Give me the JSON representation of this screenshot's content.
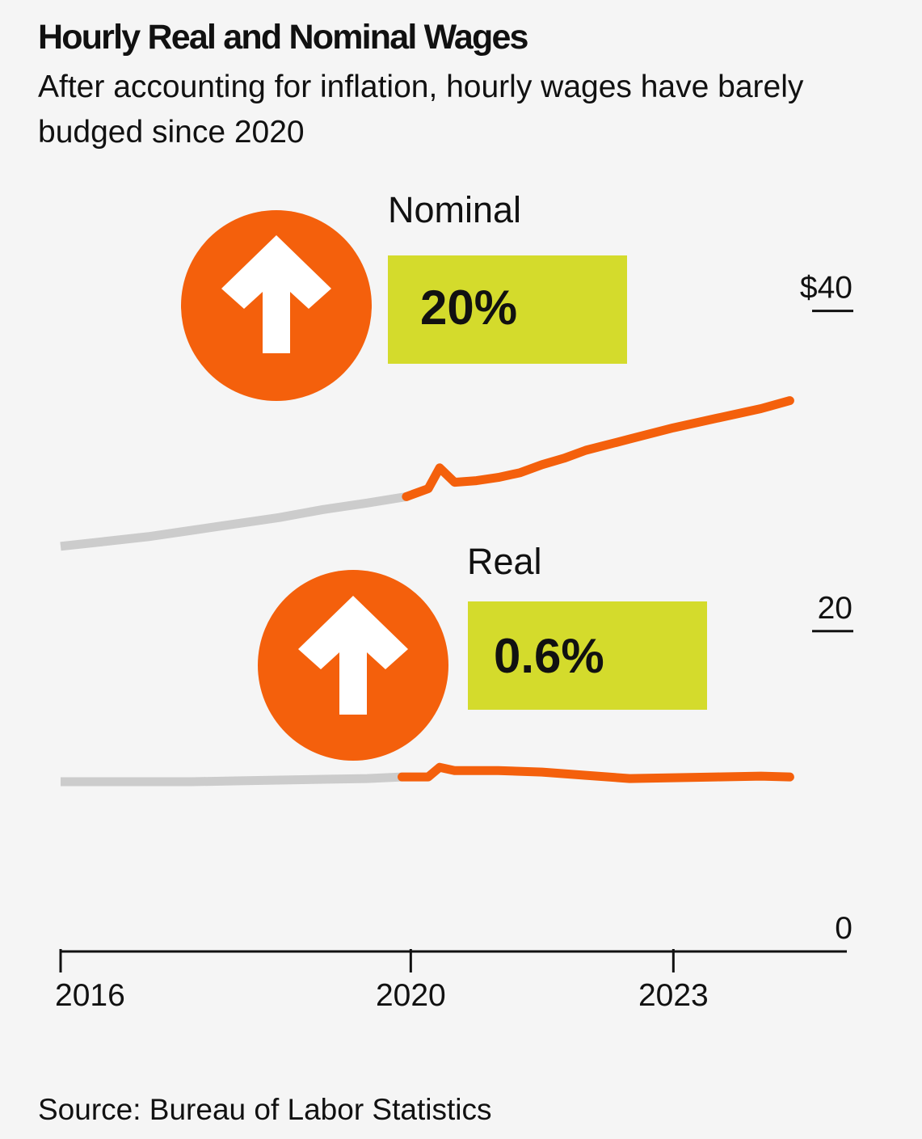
{
  "header": {
    "title": "Hourly Real and Nominal Wages",
    "subtitle": "After accounting for inflation, hourly wages have barely budged since 2020"
  },
  "footer": {
    "source": "Source: Bureau of Labor Statistics"
  },
  "colors": {
    "pre_2020_line": "#cccccc",
    "post_2020_line": "#f4600c",
    "badge_circle": "#f4600c",
    "badge_box": "#d4db2c",
    "background": "#f5f5f5",
    "text": "#111111"
  },
  "chart_data": {
    "type": "line",
    "x_tick_labels": [
      "2016",
      "2020",
      "2023"
    ],
    "y_tick_labels": [
      "$40",
      "20",
      "0"
    ],
    "y_ticks": [
      40,
      20,
      0
    ],
    "ylim": [
      0,
      42
    ],
    "xlim": [
      2016.0,
      2025.0
    ],
    "x_axis_arrow_tick": 2016.0,
    "x_axis_ticks": [
      2016.0,
      2020.0,
      2023.0
    ],
    "highlight_start": 2020.0,
    "series": [
      {
        "name": "Nominal",
        "change_label": "20%",
        "icon": "arrow-up-icon",
        "points": [
          [
            2016.0,
            25.3
          ],
          [
            2016.5,
            25.6
          ],
          [
            2017.0,
            25.9
          ],
          [
            2017.5,
            26.3
          ],
          [
            2018.0,
            26.7
          ],
          [
            2018.5,
            27.1
          ],
          [
            2019.0,
            27.6
          ],
          [
            2019.5,
            28.0
          ],
          [
            2019.95,
            28.4
          ],
          [
            2020.2,
            28.9
          ],
          [
            2020.33,
            30.2
          ],
          [
            2020.5,
            29.3
          ],
          [
            2020.75,
            29.4
          ],
          [
            2021.0,
            29.6
          ],
          [
            2021.25,
            29.9
          ],
          [
            2021.5,
            30.4
          ],
          [
            2021.75,
            30.8
          ],
          [
            2022.0,
            31.3
          ],
          [
            2022.5,
            32.0
          ],
          [
            2023.0,
            32.7
          ],
          [
            2023.5,
            33.3
          ],
          [
            2024.0,
            33.9
          ],
          [
            2024.33,
            34.4
          ]
        ]
      },
      {
        "name": "Real",
        "change_label": "0.6%",
        "icon": "arrow-up-icon",
        "points": [
          [
            2016.0,
            10.6
          ],
          [
            2016.5,
            10.6
          ],
          [
            2017.0,
            10.6
          ],
          [
            2017.5,
            10.6
          ],
          [
            2018.0,
            10.65
          ],
          [
            2018.5,
            10.7
          ],
          [
            2019.0,
            10.75
          ],
          [
            2019.5,
            10.8
          ],
          [
            2019.9,
            10.9
          ],
          [
            2020.2,
            10.9
          ],
          [
            2020.33,
            11.5
          ],
          [
            2020.5,
            11.3
          ],
          [
            2021.0,
            11.3
          ],
          [
            2021.5,
            11.2
          ],
          [
            2022.0,
            11.0
          ],
          [
            2022.5,
            10.8
          ],
          [
            2023.0,
            10.85
          ],
          [
            2023.5,
            10.9
          ],
          [
            2024.0,
            10.95
          ],
          [
            2024.33,
            10.9
          ]
        ]
      }
    ]
  }
}
